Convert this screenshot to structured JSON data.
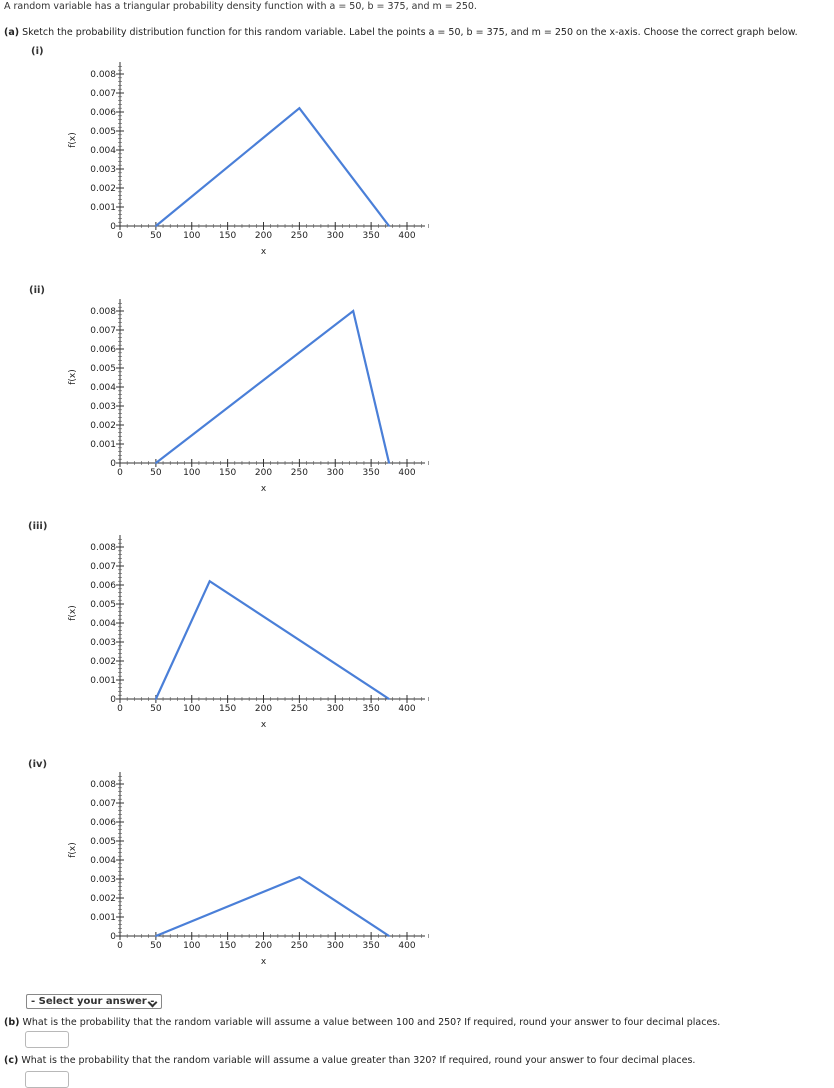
{
  "intro": "A random variable has a triangular probability density function with a = 50, b = 375, and m = 250.",
  "part_a": {
    "tag": "(a)",
    "text": "Sketch the probability distribution function for this random variable. Label the points a = 50, b = 375, and m = 250 on the x-axis. Choose the correct graph below."
  },
  "options": [
    {
      "label": "(i)",
      "chart_data": {
        "type": "line",
        "xlabel": "x",
        "ylabel": "f(x)",
        "xlim": [
          0,
          400
        ],
        "ylim": [
          0,
          0.008
        ],
        "xticks": [
          "0",
          "50",
          "100",
          "150",
          "200",
          "250",
          "300",
          "350",
          "400"
        ],
        "yticks": [
          "0",
          "0.001",
          "0.002",
          "0.003",
          "0.004",
          "0.005",
          "0.006",
          "0.007",
          "0.008"
        ],
        "x": [
          50,
          250,
          375
        ],
        "y": [
          0,
          0.0062,
          0
        ],
        "color": "#4a7fd8"
      }
    },
    {
      "label": "(ii)",
      "chart_data": {
        "type": "line",
        "xlabel": "x",
        "ylabel": "f(x)",
        "xlim": [
          0,
          400
        ],
        "ylim": [
          0,
          0.008
        ],
        "xticks": [
          "0",
          "50",
          "100",
          "150",
          "200",
          "250",
          "300",
          "350",
          "400"
        ],
        "yticks": [
          "0",
          "0.001",
          "0.002",
          "0.003",
          "0.004",
          "0.005",
          "0.006",
          "0.007",
          "0.008"
        ],
        "x": [
          50,
          325,
          375
        ],
        "y": [
          0,
          0.008,
          0
        ],
        "color": "#4a7fd8"
      }
    },
    {
      "label": "(iii)",
      "chart_data": {
        "type": "line",
        "xlabel": "x",
        "ylabel": "f(x)",
        "xlim": [
          0,
          400
        ],
        "ylim": [
          0,
          0.008
        ],
        "xticks": [
          "0",
          "50",
          "100",
          "150",
          "200",
          "250",
          "300",
          "350",
          "400"
        ],
        "yticks": [
          "0",
          "0.001",
          "0.002",
          "0.003",
          "0.004",
          "0.005",
          "0.006",
          "0.007",
          "0.008"
        ],
        "x": [
          50,
          125,
          375
        ],
        "y": [
          0,
          0.0062,
          0
        ],
        "color": "#4a7fd8"
      }
    },
    {
      "label": "(iv)",
      "chart_data": {
        "type": "line",
        "xlabel": "x",
        "ylabel": "f(x)",
        "xlim": [
          0,
          400
        ],
        "ylim": [
          0,
          0.008
        ],
        "xticks": [
          "0",
          "50",
          "100",
          "150",
          "200",
          "250",
          "300",
          "350",
          "400"
        ],
        "yticks": [
          "0",
          "0.001",
          "0.002",
          "0.003",
          "0.004",
          "0.005",
          "0.006",
          "0.007",
          "0.008"
        ],
        "x": [
          50,
          250,
          375
        ],
        "y": [
          0,
          0.0031,
          0
        ],
        "color": "#4a7fd8"
      }
    }
  ],
  "select": {
    "selected": "- Select your answer -"
  },
  "part_b": {
    "tag": "(b)",
    "text": "What is the probability that the random variable will assume a value between 100 and 250? If required, round your answer to four decimal places.",
    "answer": ""
  },
  "part_c": {
    "tag": "(c)",
    "text": "What is the probability that the random variable will assume a value greater than 320? If required, round your answer to four decimal places.",
    "answer": ""
  }
}
